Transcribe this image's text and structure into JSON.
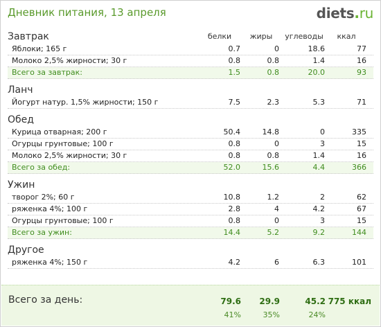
{
  "header": {
    "title": "Дневник питания, 13 апреля",
    "logo_name": "diets",
    "logo_dot": ".",
    "logo_tld": "ru"
  },
  "columns": [
    "белки",
    "жиры",
    "углеводы",
    "ккал"
  ],
  "meals": [
    {
      "name": "Завтрак",
      "items": [
        {
          "name": "Яблоки; 165 г",
          "values": [
            "0.7",
            "0",
            "18.6",
            "77"
          ]
        },
        {
          "name": "Молоко 2,5% жирности; 30 г",
          "values": [
            "0.8",
            "0.8",
            "1.4",
            "16"
          ]
        }
      ],
      "subtotal": {
        "name": "Всего за завтрак:",
        "values": [
          "1.5",
          "0.8",
          "20.0",
          "93"
        ]
      }
    },
    {
      "name": "Ланч",
      "items": [
        {
          "name": "Йогурт натур. 1,5% жирности; 150 г",
          "values": [
            "7.5",
            "2.3",
            "5.3",
            "71"
          ]
        }
      ]
    },
    {
      "name": "Обед",
      "items": [
        {
          "name": "Курица отварная; 200 г",
          "values": [
            "50.4",
            "14.8",
            "0",
            "335"
          ]
        },
        {
          "name": "Огурцы грунтовые; 100 г",
          "values": [
            "0.8",
            "0",
            "3",
            "15"
          ]
        },
        {
          "name": "Молоко 2,5% жирности; 30 г",
          "values": [
            "0.8",
            "0.8",
            "1.4",
            "16"
          ]
        }
      ],
      "subtotal": {
        "name": "Всего за обед:",
        "values": [
          "52.0",
          "15.6",
          "4.4",
          "366"
        ]
      }
    },
    {
      "name": "Ужин",
      "items": [
        {
          "name": "творог 2%; 60 г",
          "values": [
            "10.8",
            "1.2",
            "2",
            "62"
          ]
        },
        {
          "name": "ряженка 4%; 100 г",
          "values": [
            "2.8",
            "4",
            "4.2",
            "67"
          ]
        },
        {
          "name": "Огурцы грунтовые; 100 г",
          "values": [
            "0.8",
            "0",
            "3",
            "15"
          ]
        }
      ],
      "subtotal": {
        "name": "Всего за ужин:",
        "values": [
          "14.4",
          "5.2",
          "9.2",
          "144"
        ]
      }
    },
    {
      "name": "Другое",
      "items": [
        {
          "name": "ряженка 4%; 150 г",
          "values": [
            "4.2",
            "6",
            "6.3",
            "101"
          ]
        }
      ]
    }
  ],
  "total": {
    "label": "Всего за день:",
    "values": [
      "79.6",
      "29.9",
      "45.2",
      "775 ккал"
    ],
    "percents": [
      "41%",
      "35%",
      "24%"
    ]
  }
}
